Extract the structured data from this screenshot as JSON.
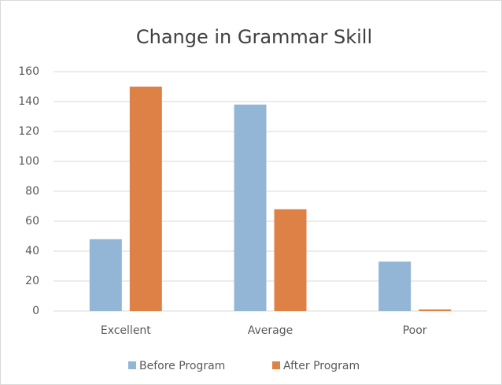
{
  "chart_data": {
    "type": "bar",
    "title": "Change in Grammar Skill",
    "categories": [
      "Excellent",
      "Average",
      "Poor"
    ],
    "series": [
      {
        "name": "Before Program",
        "color": "#93b6d6",
        "values": [
          48,
          138,
          33
        ]
      },
      {
        "name": "After Program",
        "color": "#de8147",
        "values": [
          150,
          68,
          1
        ]
      }
    ],
    "ylim": [
      0,
      160
    ],
    "yticks": [
      0,
      20,
      40,
      60,
      80,
      100,
      120,
      140,
      160
    ],
    "grid": true,
    "legend": "bottom"
  }
}
